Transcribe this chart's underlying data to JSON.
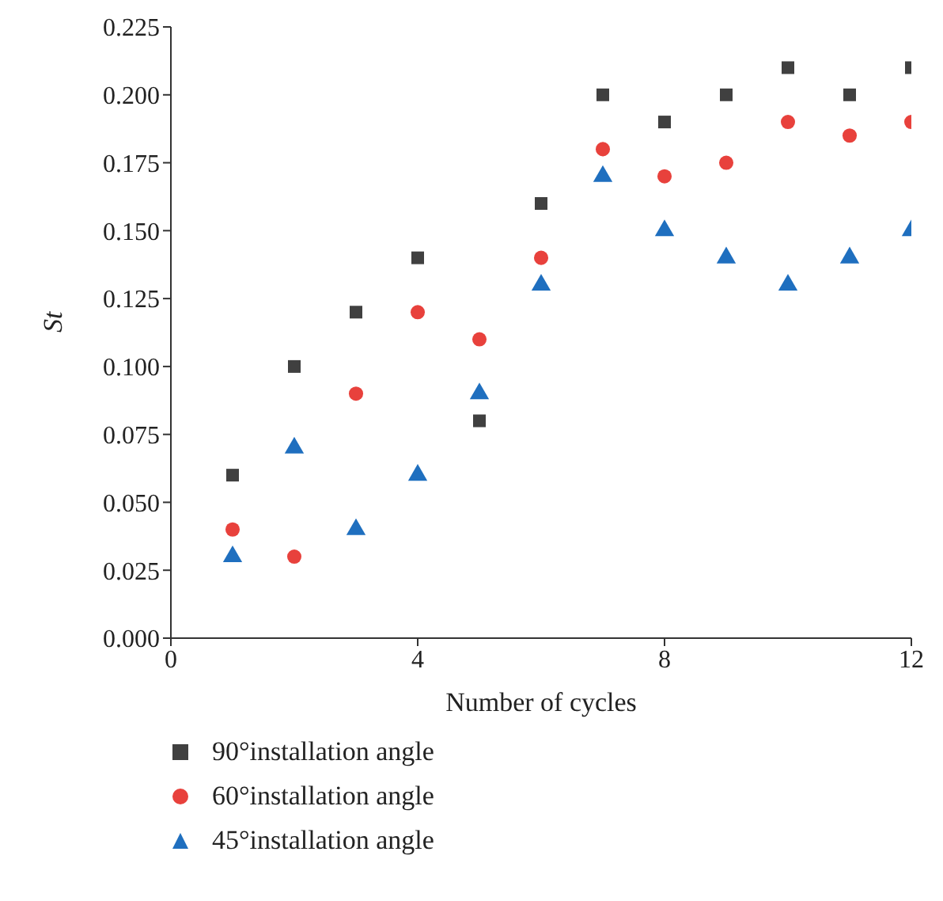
{
  "chart_data": {
    "type": "scatter",
    "xlabel": "Number of cycles",
    "ylabel": "St",
    "x": [
      1,
      2,
      3,
      4,
      5,
      6,
      7,
      8,
      9,
      10,
      11,
      12
    ],
    "xlim": [
      0,
      12
    ],
    "xticks": [
      0,
      4,
      8,
      12
    ],
    "ylim": [
      0,
      0.225
    ],
    "yticks": [
      {
        "value": 0,
        "label": "0.000"
      },
      {
        "value": 0.025,
        "label": "0.025"
      },
      {
        "value": 0.05,
        "label": "0.050"
      },
      {
        "value": 0.075,
        "label": "0.075"
      },
      {
        "value": 0.1,
        "label": "0.100"
      },
      {
        "value": 0.125,
        "label": "0.125"
      },
      {
        "value": 0.15,
        "label": "0.150"
      },
      {
        "value": 0.175,
        "label": "0.175"
      },
      {
        "value": 0.2,
        "label": "0.200"
      },
      {
        "value": 0.225,
        "label": "0.225"
      }
    ],
    "grid": false,
    "legend": "bottom",
    "series": [
      {
        "name": "90°installation angle",
        "color": "#404040",
        "marker": "square",
        "values": [
          0.06,
          0.1,
          0.12,
          0.14,
          0.08,
          0.16,
          0.2,
          0.19,
          0.2,
          0.21,
          0.2,
          0.21
        ]
      },
      {
        "name": "60°installation angle",
        "color": "#e8413c",
        "marker": "circle",
        "values": [
          0.04,
          0.03,
          0.09,
          0.12,
          0.11,
          0.14,
          0.18,
          0.17,
          0.175,
          0.19,
          0.185,
          0.19
        ]
      },
      {
        "name": "45°installation angle",
        "color": "#1f6fbf",
        "marker": "triangle",
        "values": [
          0.03,
          0.07,
          0.04,
          0.06,
          0.09,
          0.13,
          0.17,
          0.15,
          0.14,
          0.13,
          0.14,
          0.15
        ]
      }
    ]
  }
}
